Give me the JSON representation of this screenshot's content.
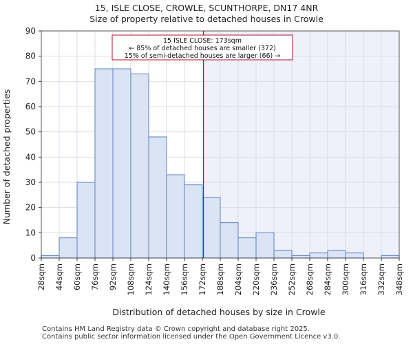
{
  "chart_data": {
    "type": "bar",
    "title": "15, ISLE CLOSE, CROWLE, SCUNTHORPE, DN17 4NR",
    "subtitle": "Size of property relative to detached houses in Crowle",
    "xlabel": "Distribution of detached houses by size in Crowle",
    "ylabel": "Number of detached properties",
    "ylim": [
      0,
      90
    ],
    "yticks": [
      0,
      10,
      20,
      30,
      40,
      50,
      60,
      70,
      80,
      90
    ],
    "bin_edges": [
      28,
      44,
      60,
      76,
      92,
      108,
      124,
      140,
      156,
      172,
      188,
      204,
      220,
      236,
      252,
      268,
      284,
      300,
      316,
      332,
      348
    ],
    "tick_labels": [
      "28sqm",
      "44sqm",
      "60sqm",
      "76sqm",
      "92sqm",
      "108sqm",
      "124sqm",
      "140sqm",
      "156sqm",
      "172sqm",
      "188sqm",
      "204sqm",
      "220sqm",
      "236sqm",
      "252sqm",
      "268sqm",
      "284sqm",
      "300sqm",
      "316sqm",
      "332sqm",
      "348sqm"
    ],
    "values": [
      1,
      8,
      30,
      75,
      75,
      73,
      48,
      33,
      29,
      24,
      14,
      8,
      10,
      3,
      1,
      2,
      3,
      2,
      0,
      1
    ],
    "marker_value": 173,
    "annotation": [
      "15 ISLE CLOSE: 173sqm",
      "← 85% of detached houses are smaller (372)",
      "15% of semi-detached houses are larger (66) →"
    ],
    "colors": {
      "bar_fill": "#dbe4f4",
      "bar_stroke": "#5b7fbd",
      "marker": "#b0102a",
      "highlight_bg": "#eef1fa"
    }
  },
  "footer": {
    "line1": "Contains HM Land Registry data © Crown copyright and database right 2025.",
    "line2": "Contains public sector information licensed under the Open Government Licence v3.0."
  }
}
